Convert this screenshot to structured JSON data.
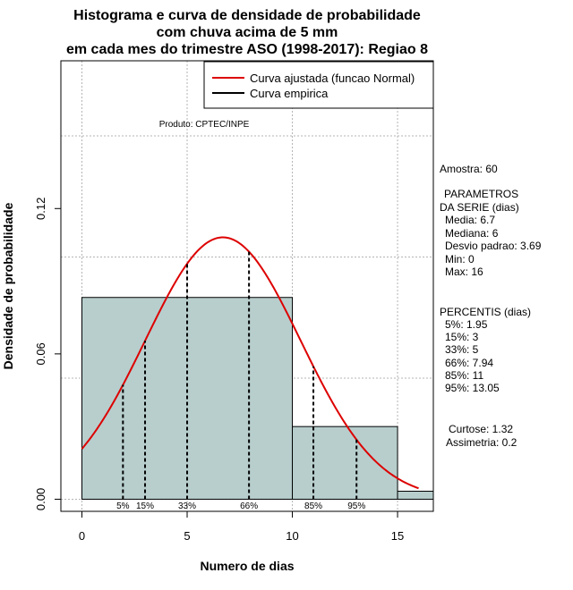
{
  "chart_data": {
    "type": "histogram",
    "title_lines": [
      "Histograma e curva de densidade de probabilidade",
      "com chuva acima de 5 mm",
      "em cada mes do trimestre ASO (1998-2017): Regiao 8"
    ],
    "xlabel": "Numero de dias",
    "ylabel": "Densidade de probabilidade",
    "xlim": [
      -1,
      16.7
    ],
    "ylim": [
      -0.005,
      0.181
    ],
    "x_ticks": [
      0,
      5,
      10,
      15
    ],
    "x_tick_labels": [
      "0",
      "5",
      "10",
      "15"
    ],
    "y_ticks": [
      0.0,
      0.06,
      0.12
    ],
    "y_tick_labels": [
      "0.00",
      "0.06",
      "0.12"
    ],
    "grid_x": [
      0,
      5,
      10,
      15
    ],
    "grid_y": [
      0.0,
      0.05,
      0.1,
      0.15
    ],
    "bars": [
      {
        "x0": 0,
        "x1": 10,
        "density": 0.0833
      },
      {
        "x0": 10,
        "x1": 15,
        "density": 0.03
      },
      {
        "x0": 15,
        "x1": 16.7,
        "density": 0.0033
      }
    ],
    "bar_color": "#b7cecd",
    "normal_curve": {
      "mean": 6.7,
      "sd": 3.69,
      "x_from": 0,
      "x_to": 16,
      "color": "#dd0000"
    },
    "percentiles": [
      {
        "label": "5%",
        "value": 1.95
      },
      {
        "label": "15%",
        "value": 3
      },
      {
        "label": "33%",
        "value": 5
      },
      {
        "label": "66%",
        "value": 7.94
      },
      {
        "label": "85%",
        "value": 11
      },
      {
        "label": "95%",
        "value": 13.05
      }
    ],
    "legend": [
      {
        "label": "Curva ajustada (funcao Normal)",
        "color": "#dd0000"
      },
      {
        "label": "Curva empirica",
        "color": "#000000"
      }
    ],
    "product_note": "Produto: CPTEC/INPE",
    "side_text": {
      "amostra": "Amostra: 60",
      "params_title": "PARAMETROS",
      "params_sub": "DA SERIE (dias)",
      "media": "Media: 6.7",
      "mediana": "Mediana: 6",
      "desvio": "Desvio padrao: 3.69",
      "min": "Min: 0",
      "max": "Max: 16",
      "percentis_title": "PERCENTIS (dias)",
      "p5": "5%: 1.95",
      "p15": "15%: 3",
      "p33": "33%: 5",
      "p66": "66%: 7.94",
      "p85": "85%: 11",
      "p95": "95%: 13.05",
      "curtose": "Curtose: 1.32",
      "assimetria": "Assimetria: 0.2"
    }
  }
}
